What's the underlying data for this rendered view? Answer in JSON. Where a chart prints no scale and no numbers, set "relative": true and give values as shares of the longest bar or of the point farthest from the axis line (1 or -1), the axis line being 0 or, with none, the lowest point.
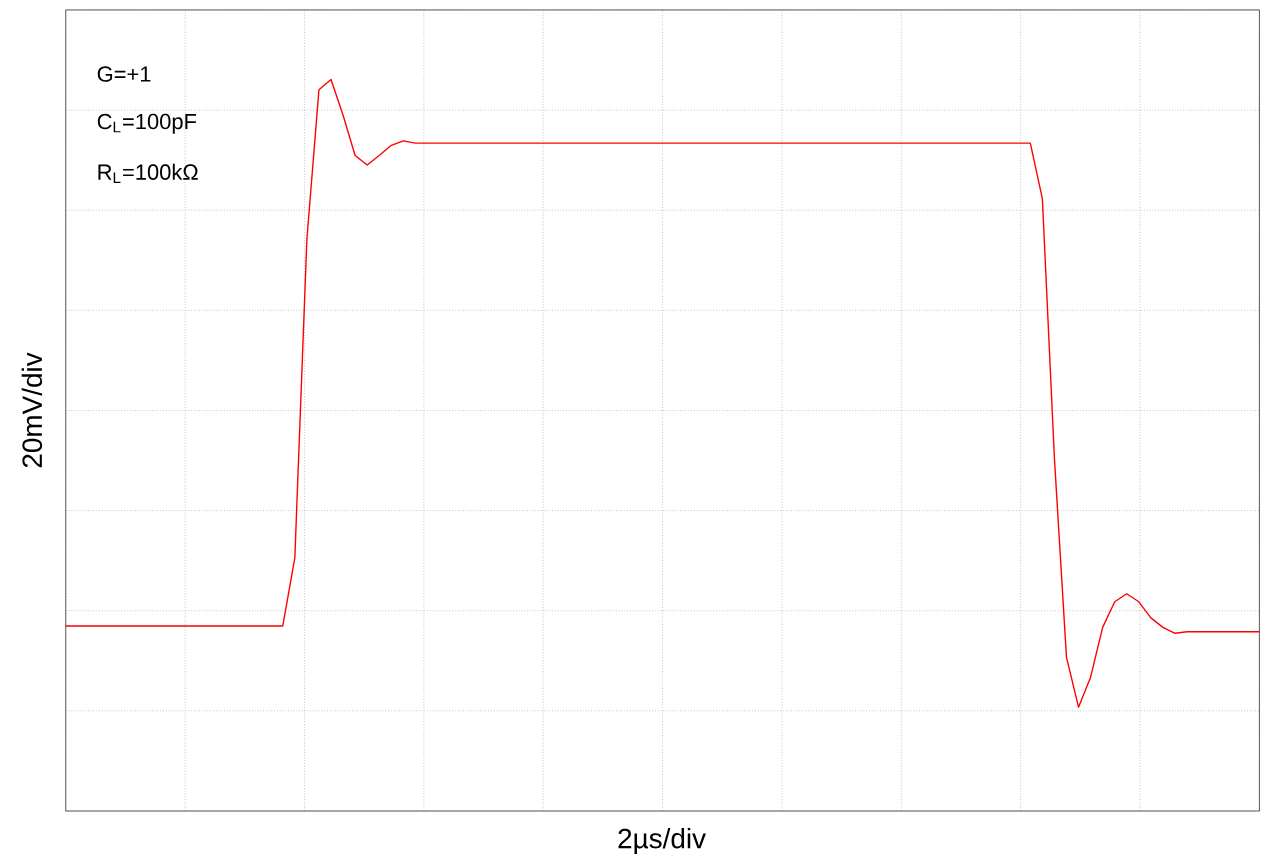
{
  "chart_data": {
    "type": "line",
    "relative": true,
    "xlabel": "2µs/div",
    "ylabel": "20mV/div",
    "grid": true,
    "marker": "none",
    "line_style": "solid",
    "annotations": [
      "G=+1",
      "C$_{L}$=100pF",
      "R$_{L}$=100kΩ"
    ],
    "categories": [
      null,
      null,
      null,
      null,
      null,
      null,
      null,
      null,
      null,
      null,
      null,
      null,
      null,
      null,
      null,
      null,
      null,
      null,
      null,
      null,
      null,
      null,
      null,
      null,
      null,
      null,
      null,
      null,
      null,
      null,
      null,
      null,
      null,
      null,
      null,
      null,
      null,
      null,
      null,
      null,
      null,
      null,
      null,
      null,
      null,
      null,
      null,
      null,
      null,
      null,
      null,
      null,
      null,
      null,
      null,
      null,
      null,
      null,
      null,
      null,
      null,
      null,
      null,
      null,
      null,
      null,
      null,
      null,
      null,
      null,
      null,
      null,
      null,
      null,
      null,
      null,
      null,
      null,
      null,
      null,
      null,
      null,
      null,
      null,
      null,
      null,
      null,
      null,
      null,
      null,
      null,
      null,
      null,
      null,
      null,
      null,
      null,
      null,
      null,
      null
    ],
    "series": [
      {
        "color": "#ff0000",
        "values": [
          0.253,
          0.253,
          0.253,
          0.253,
          0.253,
          0.253,
          0.253,
          0.253,
          0.253,
          0.253,
          0.253,
          0.253,
          0.253,
          0.253,
          0.253,
          0.253,
          0.253,
          0.253,
          0.253,
          0.346,
          0.782,
          0.986,
          1,
          0.951,
          0.896,
          0.883,
          0.896,
          0.91,
          0.916,
          0.913,
          0.913,
          0.913,
          0.913,
          0.913,
          0.913,
          0.913,
          0.913,
          0.913,
          0.913,
          0.913,
          0.913,
          0.913,
          0.913,
          0.913,
          0.913,
          0.913,
          0.913,
          0.913,
          0.913,
          0.913,
          0.913,
          0.913,
          0.913,
          0.913,
          0.913,
          0.913,
          0.913,
          0.913,
          0.913,
          0.913,
          0.913,
          0.913,
          0.913,
          0.913,
          0.913,
          0.913,
          0.913,
          0.913,
          0.913,
          0.913,
          0.913,
          0.913,
          0.913,
          0.913,
          0.913,
          0.913,
          0.913,
          0.913,
          0.913,
          0.913,
          0.913,
          0.837,
          0.482,
          0.21,
          0.142,
          0.183,
          0.251,
          0.286,
          0.297,
          0.286,
          0.264,
          0.251,
          0.243,
          0.245,
          0.245,
          0.245,
          0.245,
          0.245,
          0.245,
          0.245
        ]
      }
    ]
  }
}
